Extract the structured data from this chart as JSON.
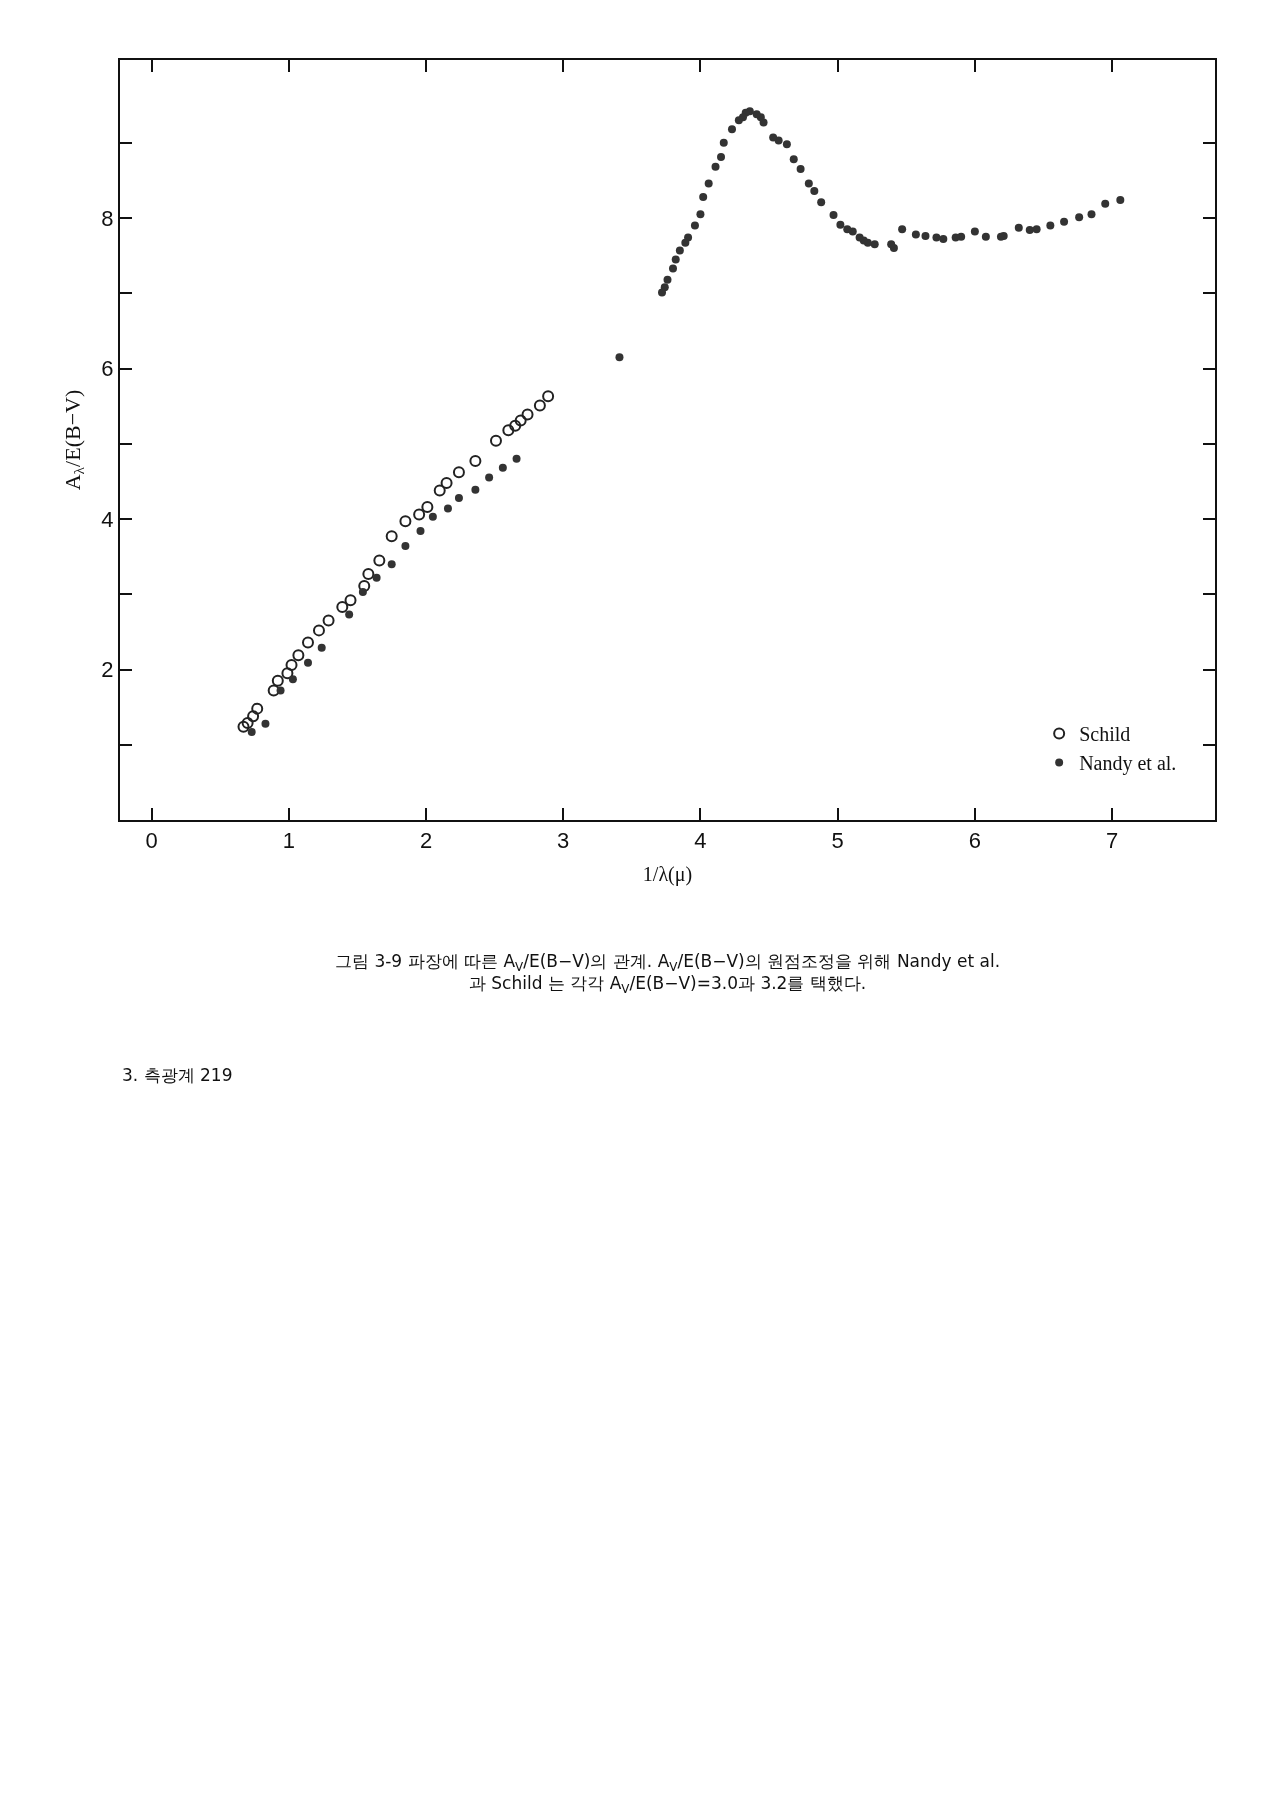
{
  "chart_data": {
    "type": "scatter",
    "xlabel": "1/λ(μ)",
    "ylabel": "A$_{λ}$/E(B−V)",
    "annotations": [
      "그림 3-9 파장에 따른 A$_{V}$/E(B−V)의 관계. A$_{V}$/E(B−V)의 원점조정을 위해 Nandy et al. 과 Schild 는 각각 A$_{V}$/E(B−V)=3.0과 3.2를 택했다.",
      "3. 측광계 219"
    ],
    "xlim": [
      -0.23,
      7.75
    ],
    "xticks": [
      0,
      1,
      2,
      3,
      4,
      5,
      6,
      7
    ],
    "ylim": [
      0,
      10.1
    ],
    "yticks": [
      {
        "value": 1,
        "label": null
      },
      2,
      {
        "value": 3,
        "label": null
      },
      4,
      {
        "value": 5,
        "label": null
      },
      6,
      {
        "value": 7,
        "label": null
      },
      8,
      {
        "value": 9,
        "label": null
      }
    ],
    "legend": "bottom right",
    "series": [
      {
        "name": "Schild",
        "color": "#222222",
        "marker": "circle-open",
        "x": [
          2.89,
          2.83,
          2.74,
          2.69,
          2.65,
          2.6,
          2.51,
          2.36,
          2.24,
          2.15,
          2.1,
          2.01,
          1.95,
          1.85,
          1.75,
          1.66,
          1.58,
          1.55,
          1.45,
          1.39,
          1.29,
          1.22,
          1.14,
          1.07,
          1.02,
          0.99,
          0.92,
          0.89,
          0.77,
          0.74,
          0.7,
          0.67
        ],
        "values": [
          5.63,
          5.51,
          5.39,
          5.31,
          5.24,
          5.18,
          5.04,
          4.77,
          4.62,
          4.48,
          4.38,
          4.16,
          4.06,
          3.97,
          3.77,
          3.45,
          3.27,
          3.11,
          2.92,
          2.83,
          2.65,
          2.52,
          2.36,
          2.19,
          2.06,
          1.95,
          1.85,
          1.72,
          1.48,
          1.38,
          1.29,
          1.24
        ]
      },
      {
        "name": "Nandy et al.",
        "color": "#333333",
        "marker": "circle",
        "x": [
          7.06,
          6.95,
          6.85,
          6.76,
          6.65,
          6.55,
          6.45,
          6.4,
          6.32,
          6.21,
          6.19,
          6.08,
          6.0,
          5.9,
          5.86,
          5.77,
          5.72,
          5.64,
          5.57,
          5.47,
          5.41,
          5.39,
          5.27,
          5.22,
          5.19,
          5.16,
          5.11,
          5.07,
          5.02,
          4.97,
          4.88,
          4.83,
          4.79,
          4.73,
          4.68,
          4.63,
          4.57,
          4.53,
          4.46,
          4.44,
          4.41,
          4.36,
          4.33,
          4.31,
          4.28,
          4.23,
          4.17,
          4.15,
          4.11,
          4.06,
          4.02,
          4.0,
          3.96,
          3.91,
          3.89,
          3.85,
          3.82,
          3.8,
          3.76,
          3.74,
          3.72,
          3.41,
          2.66,
          2.56,
          2.46,
          2.36,
          2.24,
          2.16,
          2.05,
          1.96,
          1.85,
          1.75,
          1.64,
          1.54,
          1.44,
          1.24,
          1.14,
          1.03,
          0.94,
          0.83,
          0.73
        ],
        "values": [
          8.24,
          8.19,
          8.05,
          8.01,
          7.95,
          7.9,
          7.85,
          7.84,
          7.87,
          7.76,
          7.75,
          7.75,
          7.82,
          7.75,
          7.74,
          7.72,
          7.74,
          7.76,
          7.78,
          7.85,
          7.6,
          7.65,
          7.65,
          7.67,
          7.7,
          7.74,
          7.82,
          7.85,
          7.91,
          8.04,
          8.21,
          8.36,
          8.46,
          8.65,
          8.78,
          8.98,
          9.03,
          9.07,
          9.27,
          9.34,
          9.38,
          9.42,
          9.4,
          9.34,
          9.3,
          9.18,
          9.0,
          8.81,
          8.68,
          8.46,
          8.28,
          8.05,
          7.9,
          7.74,
          7.67,
          7.57,
          7.45,
          7.33,
          7.18,
          7.08,
          7.01,
          6.15,
          4.8,
          4.68,
          4.55,
          4.39,
          4.28,
          4.14,
          4.03,
          3.84,
          3.64,
          3.4,
          3.22,
          3.03,
          2.73,
          2.29,
          2.09,
          1.87,
          1.72,
          1.28,
          1.17
        ]
      }
    ]
  }
}
